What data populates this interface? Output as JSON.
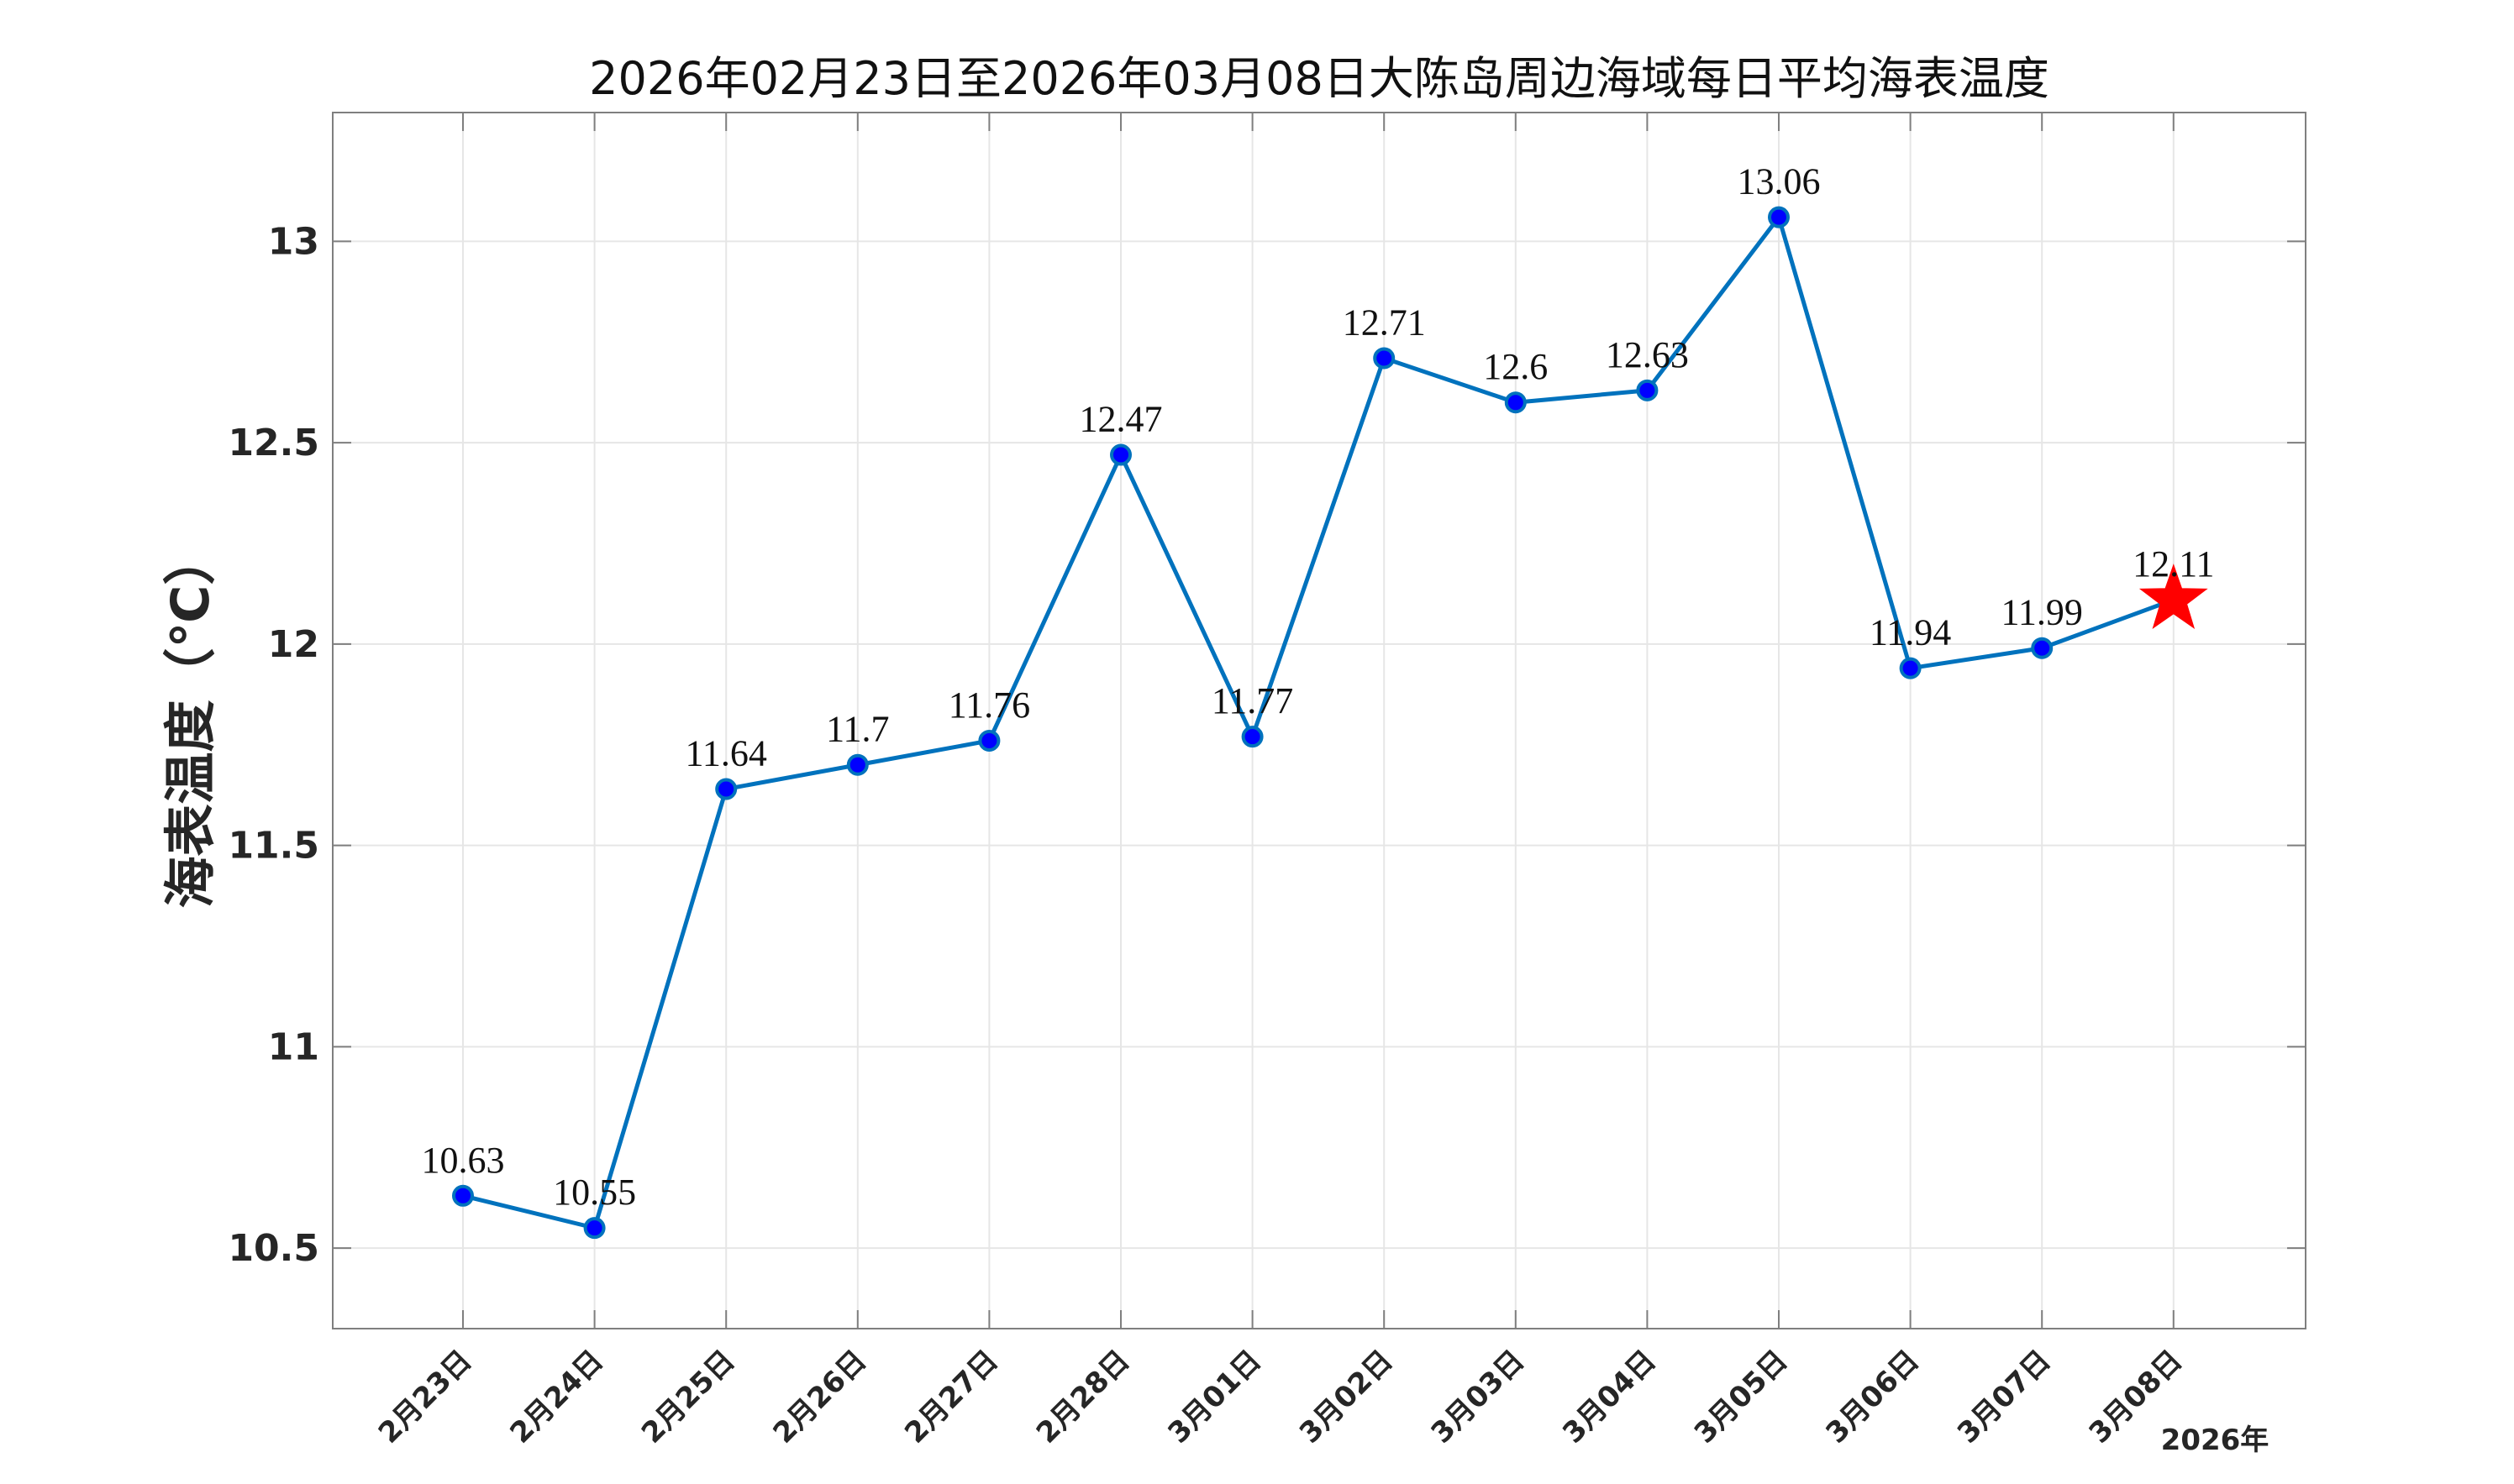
{
  "colors": {
    "line": "#0072BD",
    "marker_fill": "#0000FF",
    "marker_edge": "#0072BD",
    "star": "#FF0000",
    "grid": "#E6E6E6",
    "axes": "#7F7F7F"
  },
  "chart_data": {
    "type": "line",
    "title": "2026年02月23日至2026年03月08日大陈岛周边海域每日平均海表温度",
    "xlabel": "",
    "ylabel": "海表温度（℃）",
    "year_label": "2026年",
    "categories": [
      "2月23日",
      "2月24日",
      "2月25日",
      "2月26日",
      "2月27日",
      "2月28日",
      "3月01日",
      "3月02日",
      "3月03日",
      "3月04日",
      "3月05日",
      "3月06日",
      "3月07日",
      "3月08日"
    ],
    "values": [
      10.63,
      10.55,
      11.64,
      11.7,
      11.76,
      12.47,
      11.77,
      12.71,
      12.6,
      12.63,
      13.06,
      11.94,
      11.99,
      12.11
    ],
    "data_labels": [
      "10.63",
      "10.55",
      "11.64",
      "11.7",
      "11.76",
      "12.47",
      "11.77",
      "12.71",
      "12.6",
      "12.63",
      "13.06",
      "11.94",
      "11.99",
      "12.11"
    ],
    "highlight_last": "red-star",
    "ylim": [
      10.3,
      13.32
    ],
    "yticks": [
      10.5,
      11,
      11.5,
      12,
      12.5,
      13
    ],
    "ytick_labels": [
      "10.5",
      "11",
      "11.5",
      "12",
      "12.5",
      "13"
    ],
    "grid": true,
    "legend": "none"
  }
}
